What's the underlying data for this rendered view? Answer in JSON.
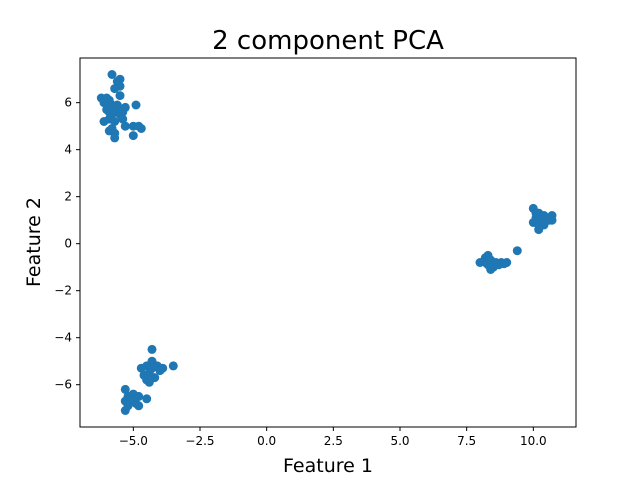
{
  "chart_data": {
    "type": "scatter",
    "title": "2 component PCA",
    "xlabel": "Feature 1",
    "ylabel": "Feature 2",
    "xlim": [
      -7.0,
      11.6
    ],
    "ylim": [
      -7.8,
      7.9
    ],
    "xticks": [
      {
        "value": -5.0,
        "label": "−5.0"
      },
      {
        "value": -2.5,
        "label": "−2.5"
      },
      {
        "value": 0.0,
        "label": "0.0"
      },
      {
        "value": 2.5,
        "label": "2.5"
      },
      {
        "value": 5.0,
        "label": "5.0"
      },
      {
        "value": 7.5,
        "label": "7.5"
      },
      {
        "value": 10.0,
        "label": "10.0"
      }
    ],
    "yticks": [
      {
        "value": -6,
        "label": "−6"
      },
      {
        "value": -4,
        "label": "−4"
      },
      {
        "value": -2,
        "label": "−2"
      },
      {
        "value": 0,
        "label": "0"
      },
      {
        "value": 2,
        "label": "2"
      },
      {
        "value": 4,
        "label": "4"
      },
      {
        "value": 6,
        "label": "6"
      }
    ],
    "grid": false,
    "color": "#1f77b4",
    "points": [
      [
        -5.8,
        7.2
      ],
      [
        -5.5,
        7.0
      ],
      [
        -5.6,
        6.9
      ],
      [
        -5.5,
        6.7
      ],
      [
        -5.7,
        6.6
      ],
      [
        -6.2,
        6.2
      ],
      [
        -6.0,
        6.2
      ],
      [
        -5.9,
        6.1
      ],
      [
        -5.5,
        6.3
      ],
      [
        -6.1,
        6.0
      ],
      [
        -5.8,
        5.9
      ],
      [
        -5.7,
        5.8
      ],
      [
        -6.0,
        5.7
      ],
      [
        -5.9,
        5.6
      ],
      [
        -5.6,
        5.7
      ],
      [
        -5.4,
        5.6
      ],
      [
        -5.8,
        5.5
      ],
      [
        -5.5,
        5.5
      ],
      [
        -5.9,
        5.3
      ],
      [
        -6.1,
        5.2
      ],
      [
        -5.7,
        5.2
      ],
      [
        -5.4,
        5.3
      ],
      [
        -5.3,
        5.0
      ],
      [
        -4.9,
        5.9
      ],
      [
        -5.9,
        4.8
      ],
      [
        -5.7,
        4.7
      ],
      [
        -5.8,
        4.9
      ],
      [
        -5.0,
        5.0
      ],
      [
        -4.8,
        5.0
      ],
      [
        -4.7,
        4.9
      ],
      [
        -5.0,
        4.6
      ],
      [
        -5.7,
        4.5
      ],
      [
        -5.6,
        5.9
      ],
      [
        -5.3,
        5.8
      ],
      [
        10.0,
        1.5
      ],
      [
        10.2,
        1.3
      ],
      [
        10.4,
        1.2
      ],
      [
        10.1,
        1.1
      ],
      [
        10.5,
        1.1
      ],
      [
        10.7,
        1.2
      ],
      [
        10.3,
        1.0
      ],
      [
        10.6,
        1.0
      ],
      [
        10.0,
        0.9
      ],
      [
        10.2,
        0.8
      ],
      [
        10.4,
        0.8
      ],
      [
        10.2,
        0.6
      ],
      [
        10.7,
        1.0
      ],
      [
        10.1,
        1.3
      ],
      [
        8.2,
        -0.6
      ],
      [
        8.3,
        -0.5
      ],
      [
        8.0,
        -0.8
      ],
      [
        8.2,
        -0.8
      ],
      [
        8.4,
        -0.7
      ],
      [
        8.6,
        -0.8
      ],
      [
        8.8,
        -0.8
      ],
      [
        9.0,
        -0.8
      ],
      [
        8.5,
        -1.0
      ],
      [
        8.4,
        -1.1
      ],
      [
        8.7,
        -0.9
      ],
      [
        9.4,
        -0.3
      ],
      [
        8.9,
        -0.85
      ],
      [
        8.3,
        -0.9
      ],
      [
        -4.3,
        -4.5
      ],
      [
        -4.3,
        -5.0
      ],
      [
        -4.5,
        -5.2
      ],
      [
        -4.1,
        -5.2
      ],
      [
        -3.9,
        -5.3
      ],
      [
        -4.3,
        -5.3
      ],
      [
        -4.7,
        -5.3
      ],
      [
        -3.5,
        -5.2
      ],
      [
        -4.0,
        -5.4
      ],
      [
        -4.4,
        -5.5
      ],
      [
        -4.6,
        -5.6
      ],
      [
        -4.2,
        -5.7
      ],
      [
        -4.5,
        -5.8
      ],
      [
        -4.4,
        -5.9
      ],
      [
        -5.3,
        -6.2
      ],
      [
        -5.0,
        -6.4
      ],
      [
        -4.8,
        -6.5
      ],
      [
        -5.2,
        -6.5
      ],
      [
        -4.5,
        -6.6
      ],
      [
        -5.1,
        -6.7
      ],
      [
        -5.3,
        -6.7
      ],
      [
        -4.9,
        -6.8
      ],
      [
        -4.8,
        -6.9
      ],
      [
        -5.2,
        -6.9
      ],
      [
        -5.3,
        -7.1
      ],
      [
        -5.1,
        -6.6
      ]
    ]
  }
}
